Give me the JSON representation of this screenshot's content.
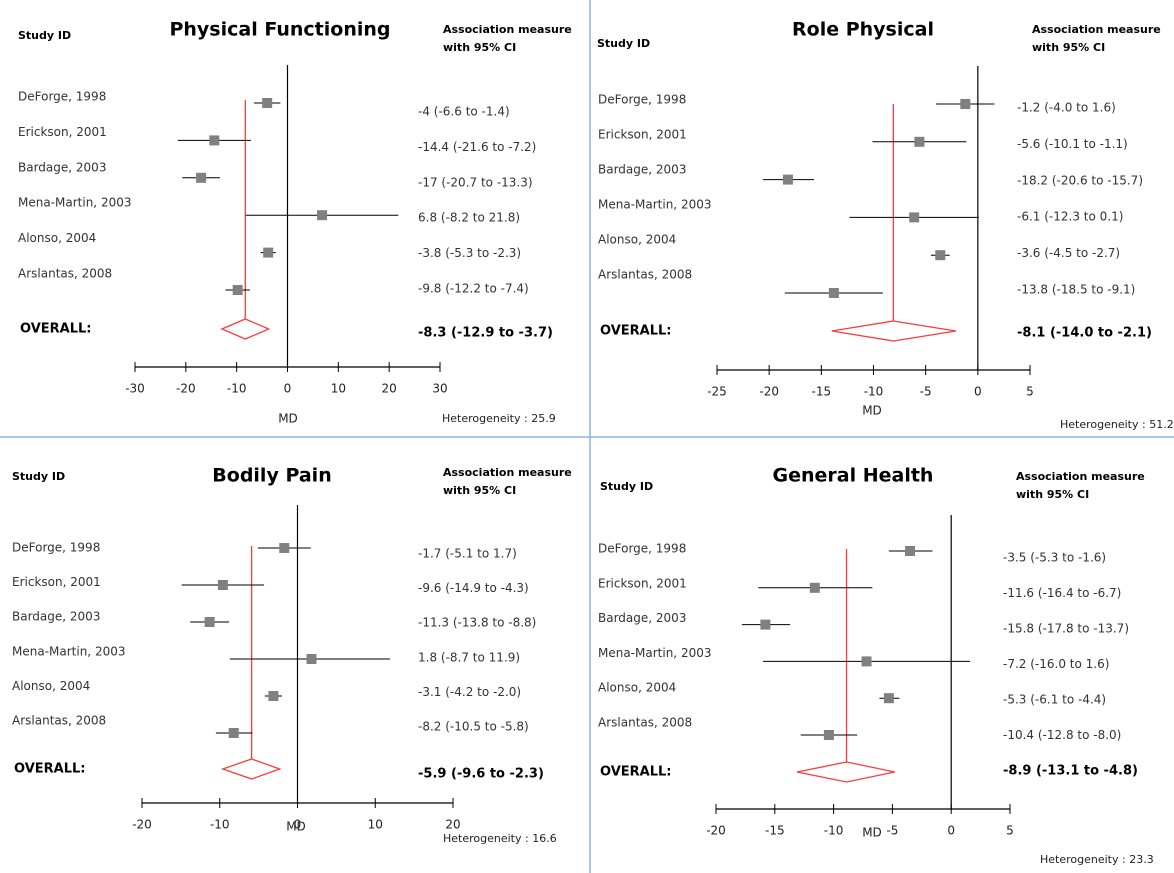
{
  "chart_data": [
    {
      "type": "forest",
      "title": "Physical Functioning",
      "id_header": "Study ID",
      "measure_header": [
        "Association measure",
        "with 95% CI"
      ],
      "categories": [
        "DeForge, 1998",
        "Erickson, 2001",
        "Bardage, 2003",
        "Mena-Martin, 2003",
        "Alonso, 2004",
        "Arslantas, 2008"
      ],
      "values": [
        -4,
        -14.4,
        -17,
        6.8,
        -3.8,
        -9.8
      ],
      "lower": [
        -6.6,
        -21.6,
        -20.7,
        -8.2,
        -5.3,
        -12.2
      ],
      "upper": [
        -1.4,
        -7.2,
        -13.3,
        21.8,
        -2.3,
        -7.4
      ],
      "value_labels": [
        "-4 (-6.6 to -1.4)",
        "-14.4 (-21.6 to -7.2)",
        "-17 (-20.7 to -13.3)",
        "6.8 (-8.2 to 21.8)",
        "-3.8 (-5.3 to -2.3)",
        "-9.8 (-12.2 to -7.4)"
      ],
      "overall": {
        "label": "OVERALL:",
        "value": -8.3,
        "lower": -12.9,
        "upper": -3.7,
        "value_label": "-8.3 (-12.9 to -3.7)"
      },
      "xlabel": "MD",
      "heterogeneity": "Heterogeneity : 25.9",
      "xlim": [
        -30,
        30
      ],
      "xticks": [
        -30,
        -20,
        -10,
        0,
        10,
        20,
        30
      ],
      "marker_color": "#808080",
      "line_color": "#000000",
      "overall_color": "#ff3a3a"
    },
    {
      "type": "forest",
      "title": "Role Physical",
      "id_header": "Study ID",
      "measure_header": [
        "Association measure",
        "with 95% CI"
      ],
      "categories": [
        "DeForge, 1998",
        "Erickson, 2001",
        "Bardage, 2003",
        "Mena-Martin, 2003",
        "Alonso, 2004",
        "Arslantas, 2008"
      ],
      "values": [
        -1.2,
        -5.6,
        -18.2,
        -6.1,
        -3.6,
        -13.8
      ],
      "lower": [
        -4.0,
        -10.1,
        -20.6,
        -12.3,
        -4.5,
        -18.5
      ],
      "upper": [
        1.6,
        -1.1,
        -15.7,
        0.1,
        -2.7,
        -9.1
      ],
      "value_labels": [
        "-1.2 (-4.0 to 1.6)",
        "-5.6 (-10.1 to -1.1)",
        "-18.2 (-20.6 to -15.7)",
        "-6.1 (-12.3 to 0.1)",
        "-3.6 (-4.5 to -2.7)",
        "-13.8 (-18.5 to -9.1)"
      ],
      "overall": {
        "label": "OVERALL:",
        "value": -8.1,
        "lower": -14.0,
        "upper": -2.1,
        "value_label": "-8.1 (-14.0 to -2.1)"
      },
      "xlabel": "MD",
      "heterogeneity": "Heterogeneity : 51.2",
      "xlim": [
        -25,
        5
      ],
      "xticks": [
        -25,
        -20,
        -15,
        -10,
        -5,
        0,
        5
      ],
      "marker_color": "#808080",
      "line_color": "#000000",
      "overall_color": "#ff3a3a"
    },
    {
      "type": "forest",
      "title": "Bodily Pain",
      "id_header": "Study ID",
      "measure_header": [
        "Association measure",
        "with 95% CI"
      ],
      "categories": [
        "DeForge, 1998",
        "Erickson, 2001",
        "Bardage, 2003",
        "Mena-Martin, 2003",
        "Alonso, 2004",
        "Arslantas, 2008"
      ],
      "values": [
        -1.7,
        -9.6,
        -11.3,
        1.8,
        -3.1,
        -8.2
      ],
      "lower": [
        -5.1,
        -14.9,
        -13.8,
        -8.7,
        -4.2,
        -10.5
      ],
      "upper": [
        1.7,
        -4.3,
        -8.8,
        11.9,
        -2.0,
        -5.8
      ],
      "value_labels": [
        "-1.7 (-5.1 to 1.7)",
        "-9.6 (-14.9 to -4.3)",
        "-11.3 (-13.8 to -8.8)",
        "1.8 (-8.7 to 11.9)",
        "-3.1 (-4.2 to -2.0)",
        "-8.2 (-10.5 to -5.8)"
      ],
      "overall": {
        "label": "OVERALL:",
        "value": -5.9,
        "lower": -9.6,
        "upper": -2.3,
        "value_label": "-5.9 (-9.6 to -2.3)"
      },
      "xlabel": "MD",
      "heterogeneity": "Heterogeneity : 16.6",
      "xlim": [
        -20,
        20
      ],
      "xticks": [
        -20,
        -10,
        0,
        10,
        20
      ],
      "marker_color": "#808080",
      "line_color": "#000000",
      "overall_color": "#ff3a3a"
    },
    {
      "type": "forest",
      "title": "General Health",
      "id_header": "Study ID",
      "measure_header": [
        "Association measure",
        "with 95% CI"
      ],
      "categories": [
        "DeForge, 1998",
        "Erickson, 2001",
        "Bardage, 2003",
        "Mena-Martin, 2003",
        "Alonso, 2004",
        "Arslantas, 2008"
      ],
      "values": [
        -3.5,
        -11.6,
        -15.8,
        -7.2,
        -5.3,
        -10.4
      ],
      "lower": [
        -5.3,
        -16.4,
        -17.8,
        -16.0,
        -6.1,
        -12.8
      ],
      "upper": [
        -1.6,
        -6.7,
        -13.7,
        1.6,
        -4.4,
        -8.0
      ],
      "value_labels": [
        "-3.5 (-5.3 to -1.6)",
        "-11.6 (-16.4 to -6.7)",
        "-15.8 (-17.8 to -13.7)",
        "-7.2 (-16.0 to 1.6)",
        "-5.3 (-6.1 to -4.4)",
        "-10.4 (-12.8 to -8.0)"
      ],
      "overall": {
        "label": "OVERALL:",
        "value": -8.9,
        "lower": -13.1,
        "upper": -4.8,
        "value_label": "-8.9 (-13.1 to -4.8)"
      },
      "xlabel": "MD",
      "heterogeneity": "Heterogeneity : 23.3",
      "xlim": [
        -20,
        5
      ],
      "xticks": [
        -20,
        -15,
        -10,
        -5,
        0,
        5
      ],
      "marker_color": "#808080",
      "line_color": "#000000",
      "overall_color": "#ff3a3a"
    }
  ]
}
